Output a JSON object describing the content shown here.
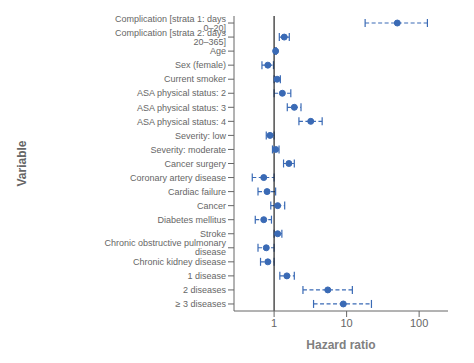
{
  "chart_data": {
    "type": "forest",
    "xlabel": "Hazard ratio",
    "ylabel": "Variable",
    "categories": [
      "Complication [strata 1: days 0–20]",
      "Complication [strata 2: days 20–365]",
      "Age",
      "Sex (female)",
      "Current smoker",
      "ASA physical status: 2",
      "ASA physical status: 3",
      "ASA physical status: 4",
      "Severity: low",
      "Severity: moderate",
      "Cancer surgery",
      "Coronary artery disease",
      "Cardiac failure",
      "Cancer",
      "Diabetes mellitus",
      "Stroke",
      "Chronic obstructive pulmonary disease",
      "Chronic kidney disease",
      "1 disease",
      "2 diseases",
      "≥ 3 diseases"
    ],
    "values": [
      50,
      1.38,
      1.05,
      0.82,
      1.1,
      1.3,
      1.9,
      3.2,
      0.88,
      1.05,
      1.6,
      0.72,
      0.8,
      1.12,
      0.72,
      1.12,
      0.78,
      0.82,
      1.5,
      5.5,
      9.0
    ],
    "ci_low": [
      18,
      1.18,
      1.03,
      0.68,
      1.0,
      1.0,
      1.52,
      2.2,
      0.78,
      0.95,
      1.35,
      0.5,
      0.6,
      0.9,
      0.55,
      1.0,
      0.6,
      0.65,
      1.2,
      2.5,
      3.5
    ],
    "ci_high": [
      130,
      1.62,
      1.07,
      0.98,
      1.22,
      1.7,
      2.35,
      4.6,
      1.0,
      1.17,
      1.9,
      1.0,
      1.05,
      1.4,
      0.92,
      1.28,
      1.0,
      1.0,
      1.9,
      12.0,
      22.0
    ],
    "color": "#3a6ab5",
    "reference_line": {
      "value": 1,
      "color": "#222222"
    },
    "log": "x",
    "xlim": [
      0.28,
      250
    ],
    "xticks": [
      1,
      10,
      100
    ],
    "grid": false
  }
}
